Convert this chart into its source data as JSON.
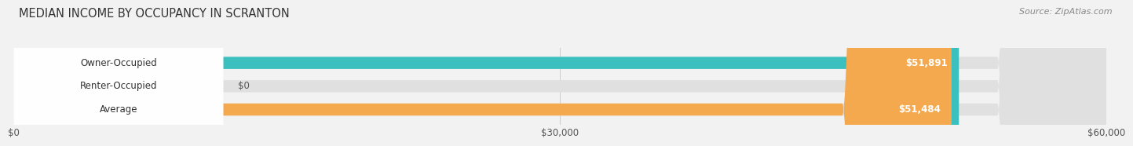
{
  "title": "MEDIAN INCOME BY OCCUPANCY IN SCRANTON",
  "source": "Source: ZipAtlas.com",
  "categories": [
    "Owner-Occupied",
    "Renter-Occupied",
    "Average"
  ],
  "values": [
    51891,
    0,
    51484
  ],
  "bar_colors": [
    "#3bbfbf",
    "#c9a8d4",
    "#f5a94e"
  ],
  "value_labels": [
    "$51,891",
    "$0",
    "$51,484"
  ],
  "xlim": [
    0,
    60000
  ],
  "xticks": [
    0,
    30000,
    60000
  ],
  "xtick_labels": [
    "$0",
    "$30,000",
    "$60,000"
  ],
  "bg_color": "#f2f2f2",
  "bar_bg_color": "#e0e0e0",
  "bar_height": 0.52,
  "title_fontsize": 10.5,
  "source_fontsize": 8,
  "label_fontsize": 8.5,
  "value_fontsize": 8.5
}
